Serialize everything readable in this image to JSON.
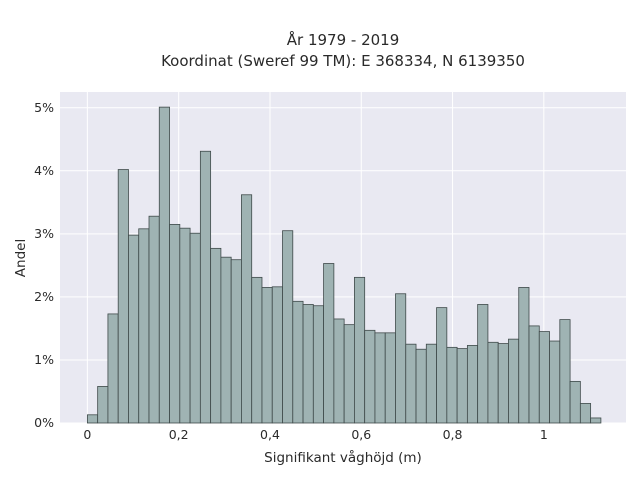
{
  "chart_data": {
    "type": "bar",
    "title": "År 1979 - 2019",
    "subtitle": "Koordinat (Sweref 99 TM): E 368334, N 6139350",
    "xlabel": "Signifikant våghöjd (m)",
    "ylabel": "Andel",
    "xlim": [
      -0.06,
      1.18
    ],
    "ylim": [
      0,
      5.25
    ],
    "x_ticks": [
      0,
      0.2,
      0.4,
      0.6,
      0.8,
      1
    ],
    "x_tick_labels": [
      "0",
      "0,2",
      "0,4",
      "0,6",
      "0,8",
      "1"
    ],
    "y_ticks": [
      0,
      1,
      2,
      3,
      4,
      5
    ],
    "y_tick_labels": [
      "0%",
      "1%",
      "2%",
      "3%",
      "4%",
      "5%"
    ],
    "grid": true,
    "bin_width": 0.0225,
    "bin_start": 0,
    "values": [
      0.13,
      0.58,
      1.73,
      4.02,
      2.98,
      3.08,
      3.28,
      5.01,
      3.15,
      3.09,
      3.01,
      4.31,
      2.77,
      2.63,
      2.59,
      3.62,
      2.31,
      2.15,
      2.16,
      3.05,
      1.93,
      1.88,
      1.86,
      2.53,
      1.65,
      1.56,
      2.31,
      1.47,
      1.43,
      1.43,
      2.05,
      1.25,
      1.17,
      1.25,
      1.83,
      1.2,
      1.18,
      1.23,
      1.88,
      1.28,
      1.26,
      1.33,
      2.15,
      1.54,
      1.45,
      1.3,
      1.64,
      0.66,
      0.31,
      0.08
    ]
  },
  "style": {
    "plot_bg": "#e9e9f2",
    "bar_fill": "#9fb3b3",
    "bar_edge": "#3f4a4a",
    "grid_color": "#ffffff"
  }
}
